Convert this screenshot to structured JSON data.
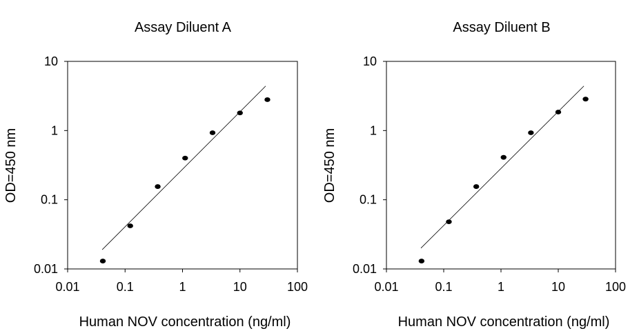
{
  "chart_data": [
    {
      "type": "scatter",
      "title": "Assay Diluent A",
      "xlabel": "Human NOV concentration (ng/ml)",
      "ylabel": "OD=450 nm",
      "xscale": "log",
      "yscale": "log",
      "xlim": [
        0.01,
        100
      ],
      "ylim": [
        0.01,
        10
      ],
      "xticks": [
        "0.01",
        "0.1",
        "1",
        "10",
        "100"
      ],
      "yticks": [
        "0.01",
        "0.1",
        "1",
        "10"
      ],
      "grid": false,
      "points": [
        {
          "x": 0.041,
          "y": 0.013
        },
        {
          "x": 0.123,
          "y": 0.042
        },
        {
          "x": 0.37,
          "y": 0.155
        },
        {
          "x": 1.11,
          "y": 0.4
        },
        {
          "x": 3.33,
          "y": 0.93
        },
        {
          "x": 10,
          "y": 1.8
        },
        {
          "x": 30,
          "y": 2.8
        }
      ],
      "fit_line": [
        {
          "x": 0.04,
          "y": 0.019
        },
        {
          "x": 28,
          "y": 4.4
        }
      ]
    },
    {
      "type": "scatter",
      "title": "Assay Diluent B",
      "xlabel": "Human NOV concentration (ng/ml)",
      "ylabel": "OD=450 nm",
      "xscale": "log",
      "yscale": "log",
      "xlim": [
        0.01,
        100
      ],
      "ylim": [
        0.01,
        10
      ],
      "xticks": [
        "0.01",
        "0.1",
        "1",
        "10",
        "100"
      ],
      "yticks": [
        "0.01",
        "0.1",
        "1",
        "10"
      ],
      "grid": false,
      "points": [
        {
          "x": 0.041,
          "y": 0.013
        },
        {
          "x": 0.123,
          "y": 0.048
        },
        {
          "x": 0.37,
          "y": 0.155
        },
        {
          "x": 1.11,
          "y": 0.41
        },
        {
          "x": 3.33,
          "y": 0.93
        },
        {
          "x": 10,
          "y": 1.85
        },
        {
          "x": 30,
          "y": 2.85
        }
      ],
      "fit_line": [
        {
          "x": 0.04,
          "y": 0.02
        },
        {
          "x": 28,
          "y": 4.4
        }
      ]
    }
  ]
}
